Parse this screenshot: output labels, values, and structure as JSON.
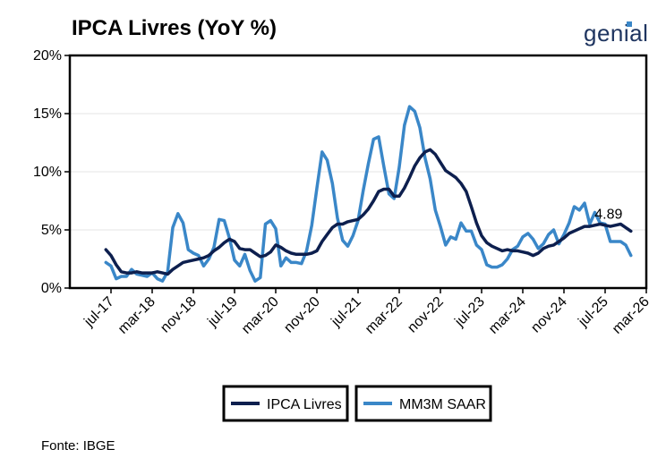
{
  "title": "IPCA Livres (YoY %)",
  "logo_text": "genial",
  "source": "Fonte: IBGE",
  "colors": {
    "ipca": "#0d1f4e",
    "mm3m": "#3a87c8",
    "grid": "#e6e6e6"
  },
  "chart_data": {
    "type": "line",
    "title": "IPCA Livres (YoY %)",
    "xlabel": "",
    "ylabel": "",
    "x_ticks": [
      "jul-17",
      "mar-18",
      "nov-18",
      "jul-19",
      "mar-20",
      "nov-20",
      "jul-21",
      "mar-22",
      "nov-22",
      "jul-23",
      "mar-24",
      "nov-24",
      "jul-25",
      "mar-26"
    ],
    "y_ticks": [
      "0%",
      "5%",
      "10%",
      "15%",
      "20%"
    ],
    "ylim": [
      0,
      20
    ],
    "x_range": [
      "2016-11",
      "2026-03"
    ],
    "grid": "horizontal",
    "legend": "bottom",
    "annotation": {
      "text": "4.89",
      "x": "2025-06",
      "y": 4.89
    },
    "series": [
      {
        "name": "IPCA Livres",
        "points": [
          [
            "2017-06",
            3.3
          ],
          [
            "2017-07",
            2.8
          ],
          [
            "2017-08",
            2.0
          ],
          [
            "2017-09",
            1.4
          ],
          [
            "2017-10",
            1.3
          ],
          [
            "2017-11",
            1.3
          ],
          [
            "2017-12",
            1.4
          ],
          [
            "2018-01",
            1.3
          ],
          [
            "2018-02",
            1.3
          ],
          [
            "2018-03",
            1.3
          ],
          [
            "2018-04",
            1.4
          ],
          [
            "2018-05",
            1.3
          ],
          [
            "2018-06",
            1.2
          ],
          [
            "2018-07",
            1.6
          ],
          [
            "2018-08",
            1.9
          ],
          [
            "2018-09",
            2.2
          ],
          [
            "2018-10",
            2.3
          ],
          [
            "2018-11",
            2.4
          ],
          [
            "2018-12",
            2.5
          ],
          [
            "2019-01",
            2.6
          ],
          [
            "2019-02",
            2.8
          ],
          [
            "2019-03",
            3.2
          ],
          [
            "2019-04",
            3.5
          ],
          [
            "2019-05",
            3.9
          ],
          [
            "2019-06",
            4.2
          ],
          [
            "2019-07",
            4.0
          ],
          [
            "2019-08",
            3.4
          ],
          [
            "2019-09",
            3.3
          ],
          [
            "2019-10",
            3.3
          ],
          [
            "2019-11",
            3.0
          ],
          [
            "2019-12",
            2.7
          ],
          [
            "2020-01",
            2.8
          ],
          [
            "2020-02",
            3.1
          ],
          [
            "2020-03",
            3.7
          ],
          [
            "2020-04",
            3.5
          ],
          [
            "2020-05",
            3.2
          ],
          [
            "2020-06",
            3.0
          ],
          [
            "2020-07",
            2.9
          ],
          [
            "2020-08",
            2.9
          ],
          [
            "2020-09",
            2.9
          ],
          [
            "2020-10",
            3.0
          ],
          [
            "2020-11",
            3.2
          ],
          [
            "2020-12",
            4.0
          ],
          [
            "2021-01",
            4.6
          ],
          [
            "2021-02",
            5.2
          ],
          [
            "2021-03",
            5.5
          ],
          [
            "2021-04",
            5.5
          ],
          [
            "2021-05",
            5.7
          ],
          [
            "2021-06",
            5.8
          ],
          [
            "2021-07",
            5.9
          ],
          [
            "2021-08",
            6.3
          ],
          [
            "2021-09",
            6.8
          ],
          [
            "2021-10",
            7.5
          ],
          [
            "2021-11",
            8.3
          ],
          [
            "2021-12",
            8.5
          ],
          [
            "2022-01",
            8.5
          ],
          [
            "2022-02",
            7.9
          ],
          [
            "2022-03",
            7.9
          ],
          [
            "2022-04",
            8.6
          ],
          [
            "2022-05",
            9.5
          ],
          [
            "2022-06",
            10.5
          ],
          [
            "2022-07",
            11.2
          ],
          [
            "2022-08",
            11.7
          ],
          [
            "2022-09",
            11.9
          ],
          [
            "2022-10",
            11.5
          ],
          [
            "2022-11",
            10.8
          ],
          [
            "2022-12",
            10.1
          ],
          [
            "2023-01",
            9.8
          ],
          [
            "2023-02",
            9.5
          ],
          [
            "2023-03",
            9.0
          ],
          [
            "2023-04",
            8.3
          ],
          [
            "2023-05",
            7.0
          ],
          [
            "2023-06",
            5.6
          ],
          [
            "2023-07",
            4.5
          ],
          [
            "2023-08",
            3.9
          ],
          [
            "2023-09",
            3.6
          ],
          [
            "2023-10",
            3.4
          ],
          [
            "2023-11",
            3.2
          ],
          [
            "2023-12",
            3.3
          ],
          [
            "2024-01",
            3.2
          ],
          [
            "2024-02",
            3.2
          ],
          [
            "2024-03",
            3.1
          ],
          [
            "2024-04",
            3.0
          ],
          [
            "2024-05",
            2.8
          ],
          [
            "2024-06",
            3.0
          ],
          [
            "2024-07",
            3.4
          ],
          [
            "2024-08",
            3.6
          ],
          [
            "2024-09",
            3.7
          ],
          [
            "2024-10",
            4.0
          ],
          [
            "2024-11",
            4.3
          ],
          [
            "2024-12",
            4.7
          ],
          [
            "2025-01",
            4.9
          ],
          [
            "2025-02",
            5.1
          ],
          [
            "2025-03",
            5.3
          ],
          [
            "2025-04",
            5.3
          ],
          [
            "2025-05",
            5.4
          ],
          [
            "2025-06",
            5.5
          ],
          [
            "2025-07",
            5.4
          ],
          [
            "2025-08",
            5.3
          ],
          [
            "2025-09",
            5.4
          ],
          [
            "2025-10",
            5.5
          ],
          [
            "2025-11",
            5.2
          ],
          [
            "2025-12",
            4.89
          ]
        ]
      },
      {
        "name": "MM3M SAAR",
        "points": [
          [
            "2017-06",
            2.2
          ],
          [
            "2017-07",
            1.9
          ],
          [
            "2017-08",
            0.8
          ],
          [
            "2017-09",
            1.0
          ],
          [
            "2017-10",
            1.0
          ],
          [
            "2017-11",
            1.6
          ],
          [
            "2017-12",
            1.2
          ],
          [
            "2018-01",
            1.1
          ],
          [
            "2018-02",
            1.0
          ],
          [
            "2018-03",
            1.3
          ],
          [
            "2018-04",
            0.8
          ],
          [
            "2018-05",
            0.6
          ],
          [
            "2018-06",
            1.4
          ],
          [
            "2018-07",
            5.2
          ],
          [
            "2018-08",
            6.4
          ],
          [
            "2018-09",
            5.6
          ],
          [
            "2018-10",
            3.3
          ],
          [
            "2018-11",
            3.0
          ],
          [
            "2018-12",
            2.8
          ],
          [
            "2019-01",
            1.9
          ],
          [
            "2019-02",
            2.5
          ],
          [
            "2019-03",
            3.5
          ],
          [
            "2019-04",
            5.9
          ],
          [
            "2019-05",
            5.8
          ],
          [
            "2019-06",
            4.3
          ],
          [
            "2019-07",
            2.4
          ],
          [
            "2019-08",
            1.9
          ],
          [
            "2019-09",
            2.9
          ],
          [
            "2019-10",
            1.5
          ],
          [
            "2019-11",
            0.6
          ],
          [
            "2019-12",
            0.9
          ],
          [
            "2020-01",
            5.5
          ],
          [
            "2020-02",
            5.8
          ],
          [
            "2020-03",
            5.1
          ],
          [
            "2020-04",
            1.9
          ],
          [
            "2020-05",
            2.6
          ],
          [
            "2020-06",
            2.2
          ],
          [
            "2020-07",
            2.2
          ],
          [
            "2020-08",
            2.1
          ],
          [
            "2020-09",
            3.2
          ],
          [
            "2020-10",
            5.4
          ],
          [
            "2020-11",
            8.6
          ],
          [
            "2020-12",
            11.7
          ],
          [
            "2021-01",
            11.0
          ],
          [
            "2021-02",
            9.0
          ],
          [
            "2021-03",
            6.0
          ],
          [
            "2021-04",
            4.1
          ],
          [
            "2021-05",
            3.6
          ],
          [
            "2021-06",
            4.5
          ],
          [
            "2021-07",
            5.8
          ],
          [
            "2021-08",
            8.4
          ],
          [
            "2021-09",
            10.7
          ],
          [
            "2021-10",
            12.8
          ],
          [
            "2021-11",
            13.0
          ],
          [
            "2021-12",
            10.5
          ],
          [
            "2022-01",
            8.1
          ],
          [
            "2022-02",
            7.7
          ],
          [
            "2022-03",
            10.4
          ],
          [
            "2022-04",
            14.0
          ],
          [
            "2022-05",
            15.6
          ],
          [
            "2022-06",
            15.2
          ],
          [
            "2022-07",
            13.8
          ],
          [
            "2022-08",
            11.2
          ],
          [
            "2022-09",
            9.4
          ],
          [
            "2022-10",
            6.7
          ],
          [
            "2022-11",
            5.3
          ],
          [
            "2022-12",
            3.7
          ],
          [
            "2023-01",
            4.4
          ],
          [
            "2023-02",
            4.2
          ],
          [
            "2023-03",
            5.6
          ],
          [
            "2023-04",
            4.9
          ],
          [
            "2023-05",
            4.9
          ],
          [
            "2023-06",
            3.7
          ],
          [
            "2023-07",
            3.3
          ],
          [
            "2023-08",
            2.0
          ],
          [
            "2023-09",
            1.8
          ],
          [
            "2023-10",
            1.8
          ],
          [
            "2023-11",
            2.0
          ],
          [
            "2023-12",
            2.5
          ],
          [
            "2024-01",
            3.3
          ],
          [
            "2024-02",
            3.6
          ],
          [
            "2024-03",
            4.4
          ],
          [
            "2024-04",
            4.7
          ],
          [
            "2024-05",
            4.2
          ],
          [
            "2024-06",
            3.4
          ],
          [
            "2024-07",
            3.8
          ],
          [
            "2024-08",
            4.6
          ],
          [
            "2024-09",
            5.0
          ],
          [
            "2024-10",
            3.8
          ],
          [
            "2024-11",
            4.6
          ],
          [
            "2024-12",
            5.6
          ],
          [
            "2025-01",
            7.0
          ],
          [
            "2025-02",
            6.7
          ],
          [
            "2025-03",
            7.3
          ],
          [
            "2025-04",
            5.5
          ],
          [
            "2025-05",
            6.5
          ],
          [
            "2025-06",
            5.6
          ],
          [
            "2025-07",
            5.5
          ],
          [
            "2025-08",
            4.0
          ],
          [
            "2025-09",
            4.0
          ],
          [
            "2025-10",
            4.0
          ],
          [
            "2025-11",
            3.7
          ],
          [
            "2025-12",
            2.8
          ]
        ]
      }
    ]
  }
}
